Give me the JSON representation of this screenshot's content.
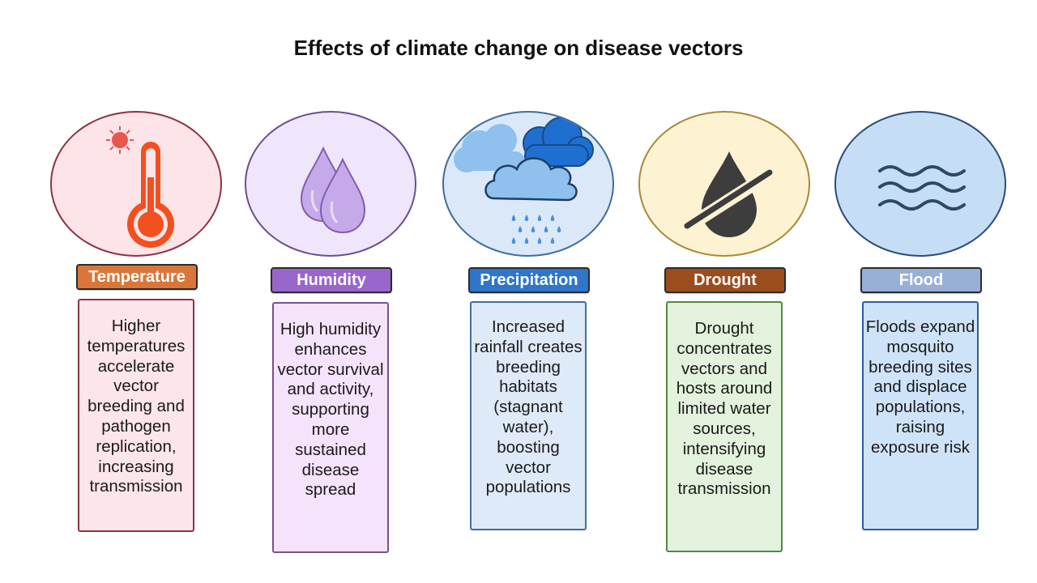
{
  "title": "Effects of climate change on disease vectors",
  "factors": [
    {
      "label": "Temperature",
      "icon": "thermometer-sun-icon",
      "description": "Higher temperatures accelerate vector breeding and pathogen replication, increasing transmission",
      "colors": {
        "label": "#d9773a",
        "circle_fill": "#fde4e8",
        "circle_border": "#8c3346",
        "box_fill": "#fde6ea",
        "box_border": "#8c3346"
      }
    },
    {
      "label": "Humidity",
      "icon": "water-droplets-icon",
      "description": "High humidity enhances vector survival and activity, supporting more sustained disease spread",
      "colors": {
        "label": "#9966cc",
        "circle_fill": "#f0e6fb",
        "circle_border": "#6b4f8f",
        "box_fill": "#f5e3fb",
        "box_border": "#7a4f8f"
      }
    },
    {
      "label": "Precipitation",
      "icon": "rain-cloud-icon",
      "description": "Increased rainfall creates breeding habitats (stagnant water), boosting vector populations",
      "colors": {
        "label": "#2f76c8",
        "circle_fill": "#dbe8f7",
        "circle_border": "#3f6e9c",
        "box_fill": "#dfeaf8",
        "box_border": "#3f6e9c"
      }
    },
    {
      "label": "Drought",
      "icon": "no-water-icon",
      "description": "Drought concentrates vectors and hosts around limited water sources, intensifying disease transmission",
      "colors": {
        "label": "#9a4e1e",
        "circle_fill": "#fdf3d3",
        "circle_border": "#a88a35",
        "box_fill": "#e3f2dc",
        "box_border": "#4f8a3f"
      }
    },
    {
      "label": "Flood",
      "icon": "waves-icon",
      "description": "Floods expand mosquito breeding sites and displace populations, raising exposure risk",
      "colors": {
        "label": "#98afd6",
        "circle_fill": "#c5def6",
        "circle_border": "#2b4c7a",
        "box_fill": "#cfe3f8",
        "box_border": "#2b5ea0"
      }
    }
  ]
}
